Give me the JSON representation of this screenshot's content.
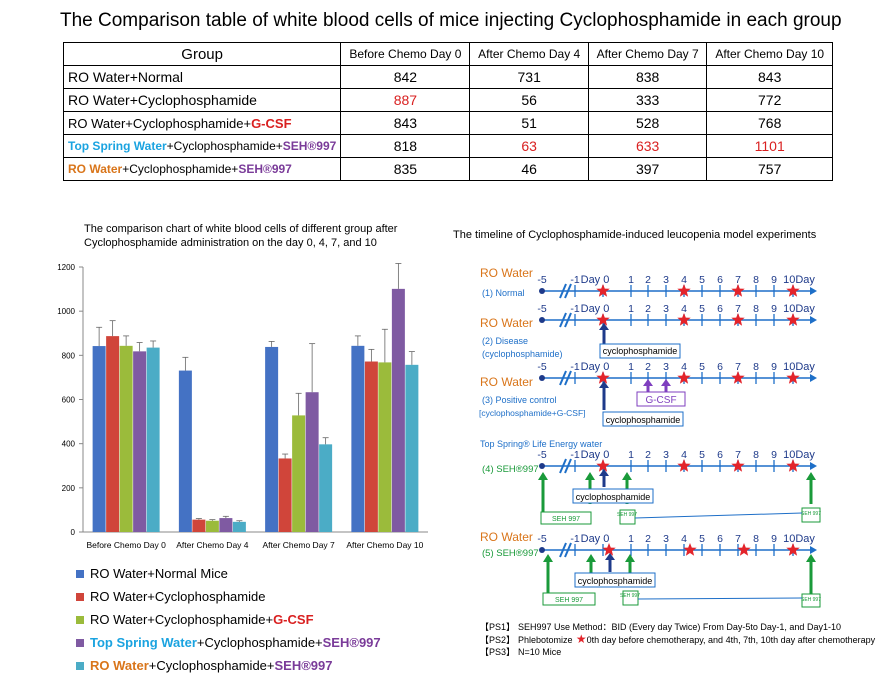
{
  "title": "The Comparison table of white blood cells of mice injecting Cyclophosphamide in each group",
  "table": {
    "headers": [
      "Group",
      "Before Chemo Day 0",
      "After Chemo Day 4",
      "After Chemo Day 7",
      "After Chemo Day 10"
    ],
    "rows": [
      {
        "group": [
          {
            "text": "RO Water+Normal",
            "color": ""
          }
        ],
        "values": [
          "842",
          "731",
          "838",
          "843"
        ],
        "highlight": [
          false,
          false,
          false,
          false
        ]
      },
      {
        "group": [
          {
            "text": "RO Water+Cyclophosphamide",
            "color": ""
          }
        ],
        "values": [
          "887",
          "56",
          "333",
          "772"
        ],
        "highlight": [
          true,
          false,
          false,
          false
        ]
      },
      {
        "group": [
          {
            "text": "RO Water+Cyclophosphamide+",
            "color": ""
          },
          {
            "text": "G-CSF",
            "color": "red"
          }
        ],
        "values": [
          "843",
          "51",
          "528",
          "768"
        ],
        "highlight": [
          false,
          false,
          false,
          false
        ]
      },
      {
        "group": [
          {
            "text": "Top Spring Water",
            "color": "blue"
          },
          {
            "text": "+Cyclophosphamide+",
            "color": ""
          },
          {
            "text": "SEH®997",
            "color": "purple"
          }
        ],
        "values": [
          "818",
          "63",
          "633",
          "1101"
        ],
        "highlight": [
          false,
          true,
          true,
          true
        ]
      },
      {
        "group": [
          {
            "text": "RO Water",
            "color": "orange"
          },
          {
            "text": "+Cyclophosphamide+",
            "color": ""
          },
          {
            "text": "SEH®997",
            "color": "purple"
          }
        ],
        "values": [
          "835",
          "46",
          "397",
          "757"
        ],
        "highlight": [
          false,
          false,
          false,
          false
        ]
      }
    ]
  },
  "chart_data": {
    "type": "bar",
    "title": "The comparison chart of white blood cells of different group after Cyclophosphamide administration on the day 0, 4, 7, and 10",
    "categories": [
      "Before Chemo Day 0",
      "After Chemo Day 4",
      "After Chemo Day 7",
      "After Chemo Day 10"
    ],
    "ylim": [
      0,
      1200
    ],
    "yticks": [
      "0",
      "200",
      "400",
      "600",
      "800",
      "1000",
      "1200"
    ],
    "series": [
      {
        "name": "RO Water+Normal Mice",
        "color": "#4472c4",
        "values": [
          842,
          731,
          838,
          843
        ],
        "errors": [
          85,
          60,
          25,
          45
        ]
      },
      {
        "name": "RO Water+Cyclophosphamide",
        "color": "#d0453a",
        "values": [
          887,
          56,
          333,
          772
        ],
        "errors": [
          70,
          5,
          20,
          55
        ]
      },
      {
        "name": "RO Water+Cyclophosphamide+G-CSF",
        "color": "#9bbb3b",
        "values": [
          843,
          51,
          528,
          768
        ],
        "errors": [
          45,
          5,
          100,
          150
        ]
      },
      {
        "name": "Top Spring Water+Cyclophosphamide+SEH®997",
        "color": "#7f5aa2",
        "values": [
          818,
          63,
          633,
          1101
        ],
        "errors": [
          40,
          8,
          220,
          115
        ]
      },
      {
        "name": "RO Water+Cyclophosphamide+SEH®997",
        "color": "#4bacc6",
        "values": [
          835,
          46,
          397,
          757
        ],
        "errors": [
          30,
          5,
          30,
          60
        ]
      }
    ]
  },
  "legend": [
    [
      {
        "text": "RO Water+Normal Mice",
        "color": "",
        "bold": false
      }
    ],
    [
      {
        "text": "RO Water+Cyclophosphamide",
        "color": "",
        "bold": false
      }
    ],
    [
      {
        "text": "RO Water+Cyclophosphamide+",
        "color": "",
        "bold": false
      },
      {
        "text": "G-CSF",
        "color": "red",
        "bold": true
      }
    ],
    [
      {
        "text": "Top Spring Water",
        "color": "blue",
        "bold": true
      },
      {
        "text": "+Cyclophosphamide+",
        "color": "",
        "bold": false
      },
      {
        "text": "SEH®997",
        "color": "purple",
        "bold": true
      }
    ],
    [
      {
        "text": "RO Water",
        "color": "orange",
        "bold": true
      },
      {
        "text": "+Cyclophosphamide+",
        "color": "",
        "bold": false
      },
      {
        "text": "SEH®997",
        "color": "purple",
        "bold": true
      }
    ]
  ],
  "timeline": {
    "title": "The timeline of Cyclophosphamide-induced leucopenia model experiments",
    "day_labels": [
      "-5",
      "-1",
      "Day 0",
      "1",
      "2",
      "3",
      "4",
      "5",
      "6",
      "7",
      "8",
      "9",
      "10Day"
    ],
    "rows": [
      {
        "header": "RO Water",
        "header_color": "orange",
        "labels": [
          "(1)  Normal"
        ],
        "label_color": "blue"
      },
      {
        "header": "RO Water",
        "header_color": "orange",
        "labels": [
          "(2)  Disease",
          "(cyclophosphamide)"
        ],
        "label_color": "blue"
      },
      {
        "header": "RO Water",
        "header_color": "orange",
        "labels": [
          "(3)  Positive control",
          "[cyclophosphamide+G-CSF]"
        ],
        "label_color": "blue"
      },
      {
        "header": "Top Spring® Life Energy water",
        "header_color": "blue",
        "labels": [
          "(4)  SEH®997"
        ],
        "label_color": "green"
      },
      {
        "header": "RO Water",
        "header_color": "orange",
        "labels": [
          "(5)  SEH®997"
        ],
        "label_color": "green"
      }
    ],
    "boxes": {
      "cyclo": "cyclophosphamide",
      "gcsf": "G-CSF",
      "seh": "SEH 997",
      "seh_small": "SEH 997"
    }
  },
  "notes": [
    {
      "key": "【PS1】",
      "text": "SEH997 Use Method：BID (Every day Twice) From Day-5to Day-1, and Day1-10",
      "star": false
    },
    {
      "key": "【PS2】",
      "text": "Phlebotomize",
      "text2": "0th day before chemotherapy, and 4th, 7th, 10th day after chemotherapy",
      "star": true
    },
    {
      "key": "【PS3】",
      "text": "N=10 Mice",
      "star": false
    }
  ]
}
